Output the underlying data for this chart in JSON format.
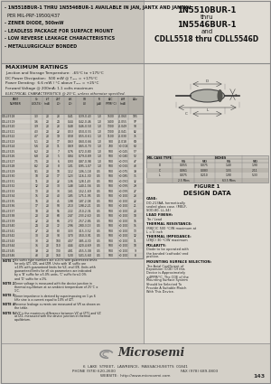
{
  "bg_color": "#d4d0c8",
  "panel_left_bg": "#c8c4bc",
  "panel_right_bg": "#e8e4dc",
  "table_header_bg": "#b8b4ac",
  "table_alt_bg": "#dedad2",
  "white": "#ffffff",
  "black": "#000000",
  "dark_gray": "#333333",
  "title_lines": [
    "1N5510BUR-1",
    "thru",
    "1N5546BUR-1",
    "and",
    "CDLL5518 thru CDLL5546D"
  ],
  "bullets": [
    "- 1N5518BUR-1 THRU 1N5546BUR-1 AVAILABLE IN JAN, JANTX AND JANTXV",
    "  PER MIL-PRF-19500/437",
    "- ZENER DIODE, 500mW",
    "- LEADLESS PACKAGE FOR SURFACE MOUNT",
    "- LOW REVERSE LEAKAGE CHARACTERISTICS",
    "- METALLURGICALLY BONDED"
  ],
  "max_ratings_lines": [
    "Junction and Storage Temperature:  -65°C to +175°C",
    "DC Power Dissipation:  500 mW @ Tₗₐ₀₁ = +175°C",
    "Power Derating:  6.6 mW / °C above Tₗₐ₀₁ = +25°C",
    "Forward Voltage @ 200mA: 1.1 volts maximum"
  ],
  "table_col_headers_row1": [
    "TYPE\nPART",
    "NOMINAL\nZENER\nVOLT",
    "ZENER\nTEST\nCURRENT",
    "MAX ZENER\nIMPEDANCE\nAT TEST",
    "MAXIMUM DC\nZENER\nCURRENT",
    "REGULATOR\nVOLTAGE",
    "REGULATOR\nCOEFFICIENT",
    "LOW\nIr"
  ],
  "table_col_headers_row2": [
    "PART\nNUMBER",
    "Vz\n(VOLTS)",
    "IzT\n(mA)",
    "ZzT @ IzT\n(Ω)",
    "IzT @ 10mA\n(Ω)",
    "Vz @ IZK\n(VOLTS)",
    "fZK\n(mA)",
    "ATC\n(PPM/°C)",
    "IzM\n(mA)"
  ],
  "table_rows": [
    [
      "CDLL5518",
      "3.3",
      "20",
      "28",
      "0.41",
      "0.39-0.43",
      "1.0",
      "1500",
      "-0.060",
      "105"
    ],
    [
      "CDLL5519",
      "3.6",
      "20",
      "24",
      "0.44",
      "0.42-0.46",
      "1.0",
      "1400",
      "-0.055",
      "97"
    ],
    [
      "CDLL5520",
      "3.9",
      "20",
      "23",
      "0.48",
      "0.46-0.50",
      "1.0",
      "1300",
      "-0.049",
      "90"
    ],
    [
      "CDLL5521",
      "4.3",
      "20",
      "22",
      "0.53",
      "0.50-0.55",
      "1.0",
      "1300",
      "-0.041",
      "82"
    ],
    [
      "CDLL5522",
      "4.7",
      "20",
      "19",
      "0.58",
      "0.55-0.61",
      "1.0",
      "1100",
      "-0.030",
      "75"
    ],
    [
      "CDLL5523",
      "5.1",
      "20",
      "17",
      "0.63",
      "0.60-0.66",
      "1.0",
      "900",
      "-0.018",
      "69"
    ],
    [
      "CDLL5524",
      "5.6",
      "20",
      "11",
      "0.69",
      "0.65-0.73",
      "1.0",
      "700",
      "+0.004",
      "63"
    ],
    [
      "CDLL5525",
      "6.2",
      "20",
      "7",
      "0.76",
      "0.72-0.80",
      "1.0",
      "500",
      "+0.025",
      "57"
    ],
    [
      "CDLL5526",
      "6.8",
      "20",
      "5",
      "0.84",
      "0.79-0.89",
      "1.0",
      "500",
      "+0.040",
      "52"
    ],
    [
      "CDLL5527",
      "7.5",
      "20",
      "6",
      "0.93",
      "0.87-0.98",
      "1.0",
      "500",
      "+0.055",
      "47"
    ],
    [
      "CDLL5528",
      "8.2",
      "20",
      "8",
      "1.01",
      "0.95-1.07",
      "1.0",
      "500",
      "+0.065",
      "43"
    ],
    [
      "CDLL5529",
      "9.1",
      "20",
      "10",
      "1.12",
      "1.06-1.18",
      "0.5",
      "500",
      "+0.075",
      "39"
    ],
    [
      "CDLL5530",
      "10",
      "20",
      "17",
      "1.23",
      "1.16-1.30",
      "0.5",
      "500",
      "+0.085",
      "35"
    ],
    [
      "CDLL5531",
      "11",
      "20",
      "22",
      "1.36",
      "1.28-1.43",
      "0.5",
      "500",
      "+0.090",
      "32"
    ],
    [
      "CDLL5532",
      "12",
      "20",
      "30",
      "1.48",
      "1.40-1.56",
      "0.5",
      "500",
      "+0.095",
      "29"
    ],
    [
      "CDLL5533",
      "13",
      "20",
      "33",
      "1.61",
      "1.52-1.69",
      "0.5",
      "500",
      "+0.095",
      "27"
    ],
    [
      "CDLL5534",
      "15",
      "20",
      "40",
      "1.85",
      "1.75-1.95",
      "0.5",
      "500",
      "+0.100",
      "23"
    ],
    [
      "CDLL5535",
      "16",
      "20",
      "45",
      "1.98",
      "1.87-2.08",
      "0.5",
      "500",
      "+0.100",
      "22"
    ],
    [
      "CDLL5536",
      "17",
      "20",
      "50",
      "2.10",
      "1.98-2.21",
      "0.5",
      "500",
      "+0.100",
      "21"
    ],
    [
      "CDLL5537",
      "18",
      "20",
      "55",
      "2.22",
      "2.10-2.34",
      "0.5",
      "500",
      "+0.100",
      "20"
    ],
    [
      "CDLL5538",
      "20",
      "20",
      "60",
      "2.47",
      "2.33-2.60",
      "0.5",
      "500",
      "+0.100",
      "18"
    ],
    [
      "CDLL5539",
      "22",
      "20",
      "66",
      "2.72",
      "2.57-2.86",
      "0.5",
      "500",
      "+0.100",
      "16"
    ],
    [
      "CDLL5540",
      "24",
      "20",
      "72",
      "2.96",
      "2.80-3.13",
      "0.5",
      "500",
      "+0.100",
      "15"
    ],
    [
      "CDLL5541",
      "27",
      "20",
      "80",
      "3.33",
      "3.15-3.52",
      "0.5",
      "500",
      "+0.100",
      "13"
    ],
    [
      "CDLL5542",
      "30",
      "20",
      "90",
      "3.70",
      "3.50-3.91",
      "0.5",
      "500",
      "+0.100",
      "12"
    ],
    [
      "CDLL5543",
      "33",
      "20",
      "100",
      "4.07",
      "3.85-4.30",
      "0.5",
      "500",
      "+0.100",
      "11"
    ],
    [
      "CDLL5544",
      "36",
      "20",
      "110",
      "4.44",
      "4.20-4.69",
      "0.5",
      "500",
      "+0.100",
      "10"
    ],
    [
      "CDLL5545",
      "39",
      "20",
      "130",
      "4.81",
      "4.55-5.08",
      "0.5",
      "500",
      "+0.100",
      "9"
    ],
    [
      "CDLL5546",
      "43",
      "20",
      "150",
      "5.30",
      "5.01-5.60",
      "0.5",
      "500",
      "+0.100",
      "8"
    ]
  ],
  "notes": [
    [
      "NOTE 1",
      "No suffix type numbers are ±20% with guaranteed limits for only IZT, IZK, and IZM. Units with 'A' suffix are ±10% with guaranteed limits for VZ, and IZK. Units with guaranteed limits for all six parameters are indicated by a 'B' suffix for ±5.0% units, 'C' suffix for±2.0% and 'D' suffix for ±1%."
    ],
    [
      "NOTE 2",
      "Zener voltage is measured with the device junction in thermal equilibrium at an ambient temperature of 25°C ± 1°C."
    ],
    [
      "NOTE 3",
      "Zener impedance is derived by superimposing on 1 µs 6 kHz sine is a current equal to 10% of IZT."
    ],
    [
      "NOTE 4",
      "Reverse leakage currents are measured at VR as shown on the table."
    ],
    [
      "NOTE 5",
      "ΔVZ is the maximum difference between VZ at IZT1 and VZ at IZ2, measured with the device junction in thermal equilibrium."
    ]
  ],
  "dim_table": {
    "headers": [
      "",
      "MIN",
      "MAX",
      "MIN",
      "MAX"
    ],
    "subheaders": [
      "MIL CASE TYPE",
      "",
      "",
      "INCHES",
      ""
    ],
    "rows": [
      [
        "D",
        "0.055",
        "0.075",
        "1.40",
        "1.90"
      ],
      [
        "C",
        "0.061",
        "0.083",
        "1.55",
        "2.11"
      ],
      [
        "L",
        "0.075",
        "0.210",
        "1.90",
        "5.33"
      ],
      [
        "",
        "2.5 Mins",
        "",
        "63.5 Mins",
        ""
      ]
    ]
  },
  "footer_address": "6  LAKE  STREET,  LAWRENCE,  MASSACHUSETTS  01841",
  "footer_phone": "PHONE (978) 620-2600",
  "footer_fax": "FAX (978) 689-0803",
  "footer_website": "WEBSITE:  http://www.microsemi.com",
  "page_number": "143"
}
